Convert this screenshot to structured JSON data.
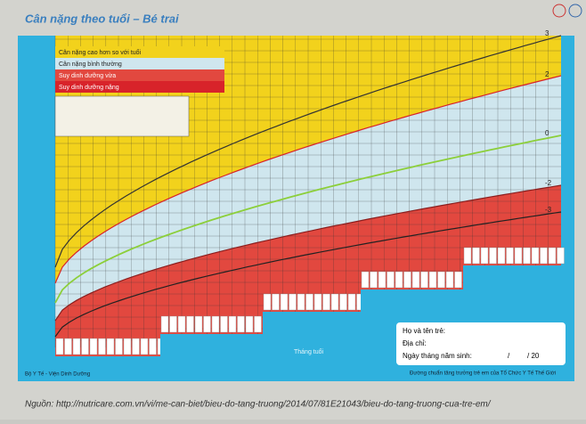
{
  "header": {
    "title": "Cân nặng theo tuổi – Bé trai"
  },
  "legend": [
    "Cân nặng cao hơn so với tuổi",
    "Cân nặng bình thường",
    "Suy dinh dưỡng vừa",
    "Suy dinh dưỡng nặng"
  ],
  "curve_labels": [
    "3",
    "2",
    "0",
    "-2",
    "-3"
  ],
  "axis_label": "Tháng tuổi",
  "form": {
    "name": "Họ và tên trẻ:",
    "address": "Địa chỉ:",
    "birth": "Ngày tháng năm sinh:",
    "sep": "/",
    "year": "/ 20"
  },
  "footer": {
    "left": "Bộ Y Tế - Viện Dinh Dưỡng",
    "right": "Đường chuẩn tăng trưởng trẻ em của Tổ Chức Y Tế Thế Giới"
  },
  "source": "Nguồn: http://nutricare.com.vn/vi/me-can-biet/bieu-do-tang-truong/2014/07/81E21043/bieu-do-tang-truong-cua-tre-em/"
}
